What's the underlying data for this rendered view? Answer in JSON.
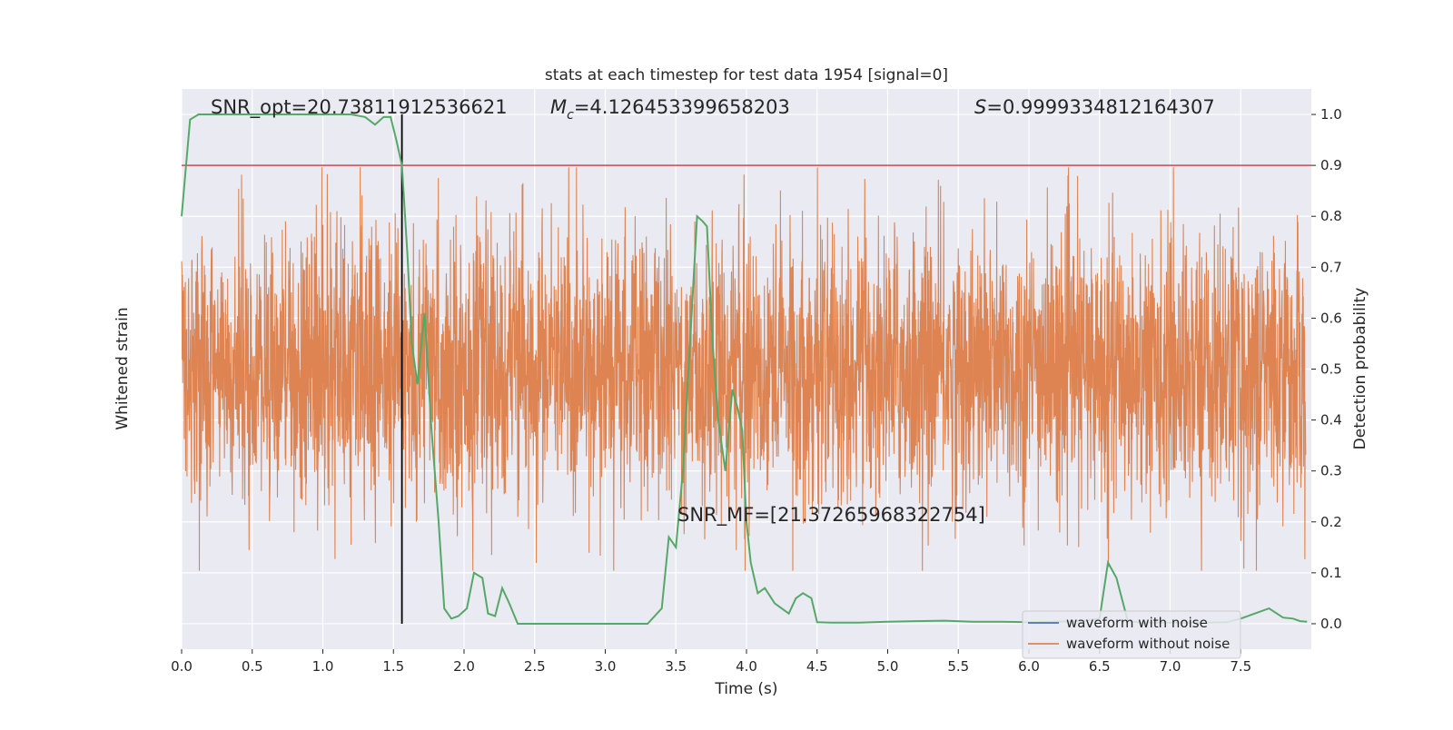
{
  "chart_data": {
    "type": "line",
    "title": "stats at each timestep for test data 1954 [signal=0]",
    "xlabel": "Time (s)",
    "ylabel_left": "Whitened strain",
    "ylabel_right": "Detection probability",
    "xlim": [
      0,
      8
    ],
    "ylim_right": [
      -0.05,
      1.05
    ],
    "x_ticks": [
      "0.0",
      "0.5",
      "1.0",
      "1.5",
      "2.0",
      "2.5",
      "3.0",
      "3.5",
      "4.0",
      "4.5",
      "5.0",
      "5.5",
      "6.0",
      "6.5",
      "7.0",
      "7.5"
    ],
    "x_tick_values": [
      0,
      0.5,
      1,
      1.5,
      2,
      2.5,
      3,
      3.5,
      4,
      4.5,
      5,
      5.5,
      6,
      6.5,
      7,
      7.5
    ],
    "y_right_ticks": [
      "0.0",
      "0.1",
      "0.2",
      "0.3",
      "0.4",
      "0.5",
      "0.6",
      "0.7",
      "0.8",
      "0.9",
      "1.0"
    ],
    "y_right_tick_values": [
      0,
      0.1,
      0.2,
      0.3,
      0.4,
      0.5,
      0.6,
      0.7,
      0.8,
      0.9,
      1.0
    ],
    "grid": true,
    "legend_position": "lower-right",
    "annotations": {
      "snr_opt": "SNR_opt=20.73811912536621",
      "mc_symbol": "M",
      "mc_sub": "c",
      "mc_value": "=4.126453399658203",
      "s_symbol": "S",
      "s_value": "=0.9999334812164307",
      "snr_mf": "SNR_MF=[21.37265968322754]"
    },
    "threshold": 0.9,
    "vertical_line_x": 1.56,
    "series": [
      {
        "name": "waveform with noise",
        "color": "#4c72b0"
      },
      {
        "name": "waveform without noise",
        "color": "#dd8452",
        "noise_amplitude": 0.72
      },
      {
        "color": "#55a868",
        "x": [
          0,
          0.06,
          0.12,
          0.2,
          0.3,
          0.4,
          0.5,
          0.6,
          0.7,
          0.8,
          0.9,
          1.0,
          1.1,
          1.2,
          1.3,
          1.37,
          1.43,
          1.48,
          1.52,
          1.56,
          1.6,
          1.63,
          1.67,
          1.72,
          1.77,
          1.82,
          1.86,
          1.91,
          1.96,
          2.02,
          2.07,
          2.13,
          2.17,
          2.22,
          2.27,
          2.32,
          2.38,
          2.43,
          2.5,
          2.6,
          2.8,
          3.0,
          3.2,
          3.3,
          3.4,
          3.45,
          3.5,
          3.55,
          3.6,
          3.65,
          3.69,
          3.72,
          3.76,
          3.8,
          3.85,
          3.9,
          3.94,
          3.97,
          4.0,
          4.03,
          4.08,
          4.13,
          4.2,
          4.3,
          4.35,
          4.4,
          4.46,
          4.5,
          4.6,
          4.8,
          5.0,
          5.2,
          5.4,
          5.6,
          5.8,
          6.0,
          6.2,
          6.4,
          6.5,
          6.56,
          6.62,
          6.7,
          6.8,
          7.0,
          7.2,
          7.4,
          7.5,
          7.6,
          7.7,
          7.8,
          7.87,
          7.92,
          7.97
        ],
        "values": [
          0.8,
          0.99,
          1.0,
          1.0,
          1.0,
          1.0,
          1.0,
          1.0,
          1.0,
          1.0,
          1.0,
          1.0,
          1.0,
          1.0,
          0.995,
          0.98,
          0.995,
          0.995,
          0.95,
          0.9,
          0.72,
          0.55,
          0.47,
          0.61,
          0.38,
          0.2,
          0.03,
          0.01,
          0.015,
          0.03,
          0.1,
          0.09,
          0.02,
          0.015,
          0.07,
          0.04,
          0.0,
          0.0,
          0.0,
          0.0,
          0.0,
          0.0,
          0.0,
          0.0,
          0.03,
          0.17,
          0.15,
          0.3,
          0.55,
          0.8,
          0.79,
          0.78,
          0.55,
          0.4,
          0.3,
          0.46,
          0.42,
          0.38,
          0.2,
          0.12,
          0.06,
          0.07,
          0.04,
          0.02,
          0.05,
          0.06,
          0.05,
          0.003,
          0.002,
          0.002,
          0.004,
          0.005,
          0.006,
          0.004,
          0.004,
          0.003,
          0.004,
          0.006,
          0.01,
          0.12,
          0.09,
          0.005,
          0.002,
          0.002,
          0.002,
          0.003,
          0.01,
          0.02,
          0.03,
          0.012,
          0.01,
          0.005,
          0.004
        ]
      }
    ]
  }
}
